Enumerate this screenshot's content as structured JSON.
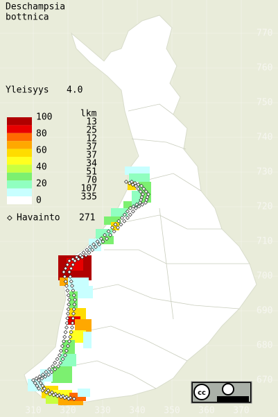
{
  "title": [
    "Deschampsia",
    "bottnica"
  ],
  "index": {
    "label": "Yleisyys",
    "value": "4.0"
  },
  "legend": {
    "scale_labels": [
      100,
      80,
      60,
      40,
      20,
      0
    ],
    "colors": [
      "#b00000",
      "#e80000",
      "#ff6a00",
      "#ffa800",
      "#ffdc00",
      "#ffff20",
      "#c8ff40",
      "#7cf070",
      "#90ffc0",
      "#c8ffff",
      "#ffffff"
    ],
    "count_header": "lkm",
    "counts": [
      13,
      25,
      12,
      37,
      37,
      34,
      51,
      70,
      107,
      335
    ]
  },
  "observations": {
    "label": "Havainto",
    "count": 271
  },
  "map": {
    "yticks": [
      770,
      760,
      750,
      740,
      730,
      720,
      710,
      700,
      690,
      680,
      670
    ],
    "xticks": [
      310,
      320,
      330,
      340,
      350,
      360,
      370
    ]
  }
}
